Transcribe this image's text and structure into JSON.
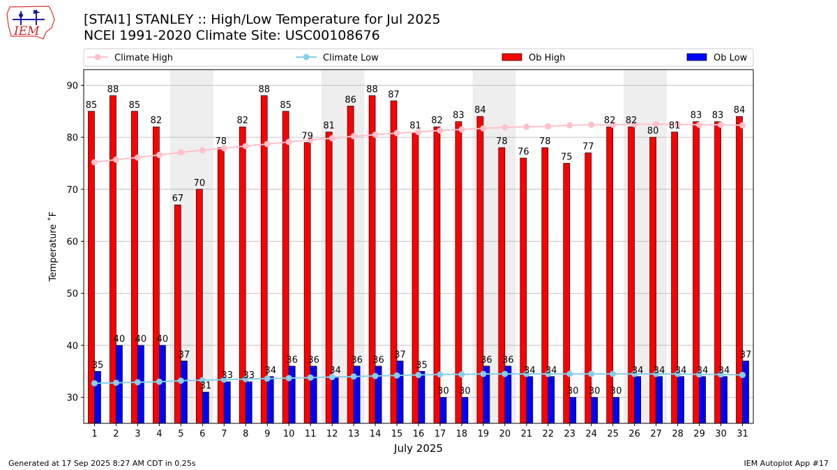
{
  "header": {
    "logo_text": "IEM",
    "title_line1": "[STAI1] STANLEY :: High/Low Temperature for Jul 2025",
    "title_line2": "NCEI 1991-2020 Climate Site: USC00108676"
  },
  "footer": {
    "generated": "Generated at 17 Sep 2025 8:27 AM CDT in 0.25s",
    "app": "IEM Autoplot App #17"
  },
  "colors": {
    "ob_high": "#ff0000",
    "ob_low": "#0000ff",
    "climate_high": "#ffc0cb",
    "climate_low": "#87ceeb",
    "weekend_shade": "#eeeeee",
    "grid": "#b0b0b0"
  },
  "chart_data": {
    "type": "bar",
    "xlabel": "July 2025",
    "ylabel": "Temperature ˚F",
    "ylim": [
      25,
      93
    ],
    "yticks": [
      30,
      40,
      50,
      60,
      70,
      80,
      90
    ],
    "grid": true,
    "legend_position": "top",
    "categories": [
      "1",
      "2",
      "3",
      "4",
      "5",
      "6",
      "7",
      "8",
      "9",
      "10",
      "11",
      "12",
      "13",
      "14",
      "15",
      "16",
      "17",
      "18",
      "19",
      "20",
      "21",
      "22",
      "23",
      "24",
      "25",
      "26",
      "27",
      "28",
      "29",
      "30",
      "31"
    ],
    "shaded_days": [
      [
        5,
        6
      ],
      [
        12,
        13
      ],
      [
        19,
        20
      ],
      [
        26,
        27
      ]
    ],
    "series": [
      {
        "name": "Ob High",
        "kind": "bar",
        "values": [
          85,
          88,
          85,
          82,
          67,
          70,
          78,
          82,
          88,
          85,
          79,
          81,
          86,
          88,
          87,
          81,
          82,
          83,
          84,
          78,
          76,
          78,
          75,
          77,
          82,
          82,
          80,
          81,
          83,
          83,
          84
        ]
      },
      {
        "name": "Ob Low",
        "kind": "bar",
        "values": [
          35,
          40,
          40,
          40,
          37,
          31,
          33,
          33,
          34,
          36,
          36,
          34,
          36,
          36,
          37,
          35,
          30,
          30,
          36,
          36,
          34,
          34,
          30,
          30,
          30,
          34,
          34,
          34,
          34,
          34,
          37
        ]
      },
      {
        "name": "Climate High",
        "kind": "line",
        "values": [
          75.2,
          75.7,
          76.1,
          76.6,
          77.1,
          77.5,
          77.9,
          78.3,
          78.7,
          79.1,
          79.5,
          79.8,
          80.2,
          80.5,
          80.8,
          81.0,
          81.3,
          81.5,
          81.7,
          81.9,
          82.0,
          82.1,
          82.3,
          82.4,
          82.4,
          82.5,
          82.5,
          82.5,
          82.4,
          82.4,
          82.3
        ]
      },
      {
        "name": "Climate Low",
        "kind": "line",
        "values": [
          32.7,
          32.8,
          32.9,
          33.0,
          33.2,
          33.3,
          33.4,
          33.5,
          33.6,
          33.7,
          33.8,
          33.9,
          34.0,
          34.1,
          34.2,
          34.3,
          34.4,
          34.4,
          34.5,
          34.5,
          34.5,
          34.5,
          34.5,
          34.5,
          34.5,
          34.5,
          34.5,
          34.5,
          34.4,
          34.4,
          34.3
        ]
      }
    ]
  }
}
